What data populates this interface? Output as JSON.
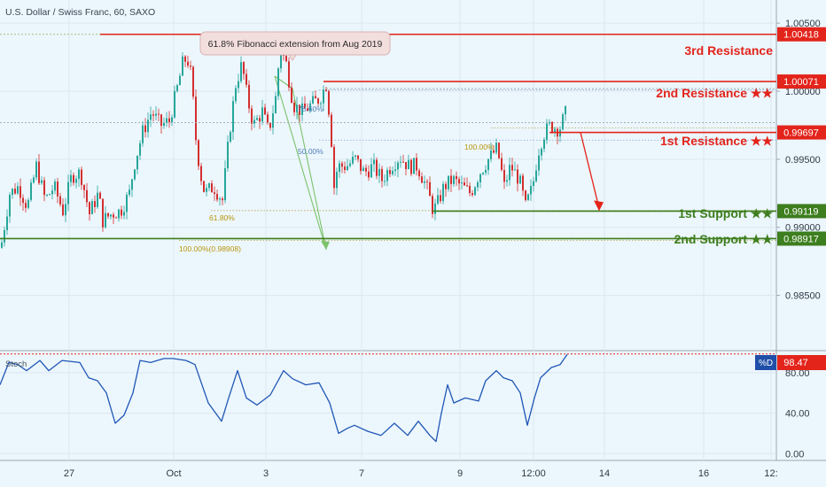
{
  "header": {
    "symbol_title": "U.S. Dollar / Swiss Franc, 60, SAXO"
  },
  "annotation": {
    "fib_extension_note": "61.8% Fibonacci extension from Aug 2019"
  },
  "colors": {
    "background": "#ecf6fd",
    "resistance": "#e3241b",
    "support": "#3d7e1e",
    "candle_up": "#26a69a",
    "candle_down": "#d32f2f",
    "stoch_line": "#1f57b5",
    "fib_text": "#b8960a",
    "fib_line": "#b8a84a",
    "arrow_green": "#7ac36a",
    "arrow_red": "#e3241b",
    "axis_border": "#9aa5ae"
  },
  "price_axis": {
    "ticks": [
      "1.00500",
      "1.00000",
      "0.99500",
      "0.99000",
      "0.98500"
    ],
    "ylim": [
      0.9812,
      1.0067
    ]
  },
  "time_axis": {
    "labels": [
      "27",
      "Oct",
      "3",
      "7",
      "9",
      "12:00",
      "14",
      "16",
      "12:"
    ]
  },
  "levels": [
    {
      "name": "3rd Resistance",
      "label": "3rd Resistance",
      "price": 1.00418,
      "price_label": "1.00418",
      "kind": "resistance"
    },
    {
      "name": "2nd Resistance",
      "label": "2nd Resistance ★★",
      "price": 1.00071,
      "price_label": "1.00071",
      "kind": "resistance"
    },
    {
      "name": "1st Resistance",
      "label": "1st Resistance ★★",
      "price": 0.99697,
      "price_label": "0.99697",
      "kind": "resistance"
    },
    {
      "name": "1st Support",
      "label": "1st Support ★★",
      "price": 0.99119,
      "price_label": "0.99119",
      "kind": "support"
    },
    {
      "name": "2nd Support",
      "label": "2nd Support ★★",
      "price": 0.98917,
      "price_label": "0.98917",
      "kind": "support"
    }
  ],
  "fib_labels": {
    "l786": "78.60%",
    "l50": "50.00%",
    "l100": "100.00%",
    "l618": "61.80%",
    "l100b": "100.00%(0.98908)"
  },
  "stoch": {
    "name": "Stoch",
    "value_tag": "%D",
    "value_label": "98.47",
    "ticks": [
      "80.00",
      "40.00",
      "0.00"
    ],
    "ylim": [
      -5,
      100
    ]
  },
  "chart_data": {
    "type": "candlestick",
    "title": "U.S. Dollar / Swiss Franc, 60, SAXO",
    "xlabel": "",
    "ylabel": "",
    "ylim": [
      0.9812,
      1.0067
    ],
    "close_path": [
      [
        0,
        0.9885
      ],
      [
        10,
        0.9925
      ],
      [
        20,
        0.993
      ],
      [
        30,
        0.9915
      ],
      [
        40,
        0.9945
      ],
      [
        50,
        0.992
      ],
      [
        60,
        0.993
      ],
      [
        70,
        0.9912
      ],
      [
        80,
        0.9938
      ],
      [
        90,
        0.994
      ],
      [
        100,
        0.991
      ],
      [
        110,
        0.9925
      ],
      [
        115,
        0.9905
      ],
      [
        125,
        0.991
      ],
      [
        135,
        0.9912
      ],
      [
        145,
        0.9925
      ],
      [
        150,
        0.9945
      ],
      [
        160,
        0.997
      ],
      [
        170,
        0.9985
      ],
      [
        180,
        0.9975
      ],
      [
        190,
        0.9978
      ],
      [
        200,
        1.0005
      ],
      [
        205,
        1.002
      ],
      [
        210,
        1.0025
      ],
      [
        215,
        1.001
      ],
      [
        220,
        0.9965
      ],
      [
        225,
        0.994
      ],
      [
        230,
        0.9925
      ],
      [
        240,
        0.993
      ],
      [
        250,
        0.992
      ],
      [
        258,
        0.997
      ],
      [
        265,
        1.0005
      ],
      [
        272,
        1.002
      ],
      [
        278,
        0.9995
      ],
      [
        285,
        0.9975
      ],
      [
        295,
        0.9985
      ],
      [
        302,
        0.997
      ],
      [
        310,
        0.9995
      ],
      [
        315,
        1.0032
      ],
      [
        322,
        1.002
      ],
      [
        330,
        0.999
      ],
      [
        340,
        0.9985
      ],
      [
        350,
        0.999
      ],
      [
        360,
        0.9995
      ],
      [
        367,
        1.0005
      ],
      [
        372,
        0.9975
      ],
      [
        376,
        0.993
      ],
      [
        380,
        0.9945
      ],
      [
        390,
        0.9945
      ],
      [
        400,
        0.995
      ],
      [
        410,
        0.994
      ],
      [
        420,
        0.9945
      ],
      [
        430,
        0.9935
      ],
      [
        440,
        0.9945
      ],
      [
        450,
        0.9952
      ],
      [
        460,
        0.9945
      ],
      [
        470,
        0.9945
      ],
      [
        480,
        0.993
      ],
      [
        488,
        0.9912
      ],
      [
        493,
        0.9918
      ],
      [
        500,
        0.993
      ],
      [
        510,
        0.9935
      ],
      [
        520,
        0.993
      ],
      [
        530,
        0.9925
      ],
      [
        540,
        0.994
      ],
      [
        550,
        0.995
      ],
      [
        560,
        0.9958
      ],
      [
        568,
        0.993
      ],
      [
        575,
        0.9945
      ],
      [
        585,
        0.9935
      ],
      [
        592,
        0.9915
      ],
      [
        600,
        0.993
      ],
      [
        606,
        0.9955
      ],
      [
        612,
        0.9968
      ],
      [
        620,
        0.9975
      ],
      [
        630,
        0.9972
      ],
      [
        638,
        0.9985
      ]
    ],
    "stoch_series": [
      [
        0,
        68
      ],
      [
        10,
        90
      ],
      [
        20,
        88
      ],
      [
        30,
        82
      ],
      [
        45,
        92
      ],
      [
        55,
        82
      ],
      [
        70,
        92
      ],
      [
        90,
        90
      ],
      [
        100,
        75
      ],
      [
        110,
        72
      ],
      [
        120,
        60
      ],
      [
        130,
        30
      ],
      [
        140,
        38
      ],
      [
        150,
        60
      ],
      [
        158,
        92
      ],
      [
        170,
        90
      ],
      [
        185,
        94
      ],
      [
        195,
        94
      ],
      [
        210,
        92
      ],
      [
        220,
        88
      ],
      [
        235,
        50
      ],
      [
        250,
        32
      ],
      [
        258,
        55
      ],
      [
        268,
        82
      ],
      [
        278,
        55
      ],
      [
        290,
        48
      ],
      [
        305,
        58
      ],
      [
        320,
        82
      ],
      [
        330,
        74
      ],
      [
        345,
        68
      ],
      [
        360,
        70
      ],
      [
        372,
        50
      ],
      [
        382,
        20
      ],
      [
        392,
        25
      ],
      [
        400,
        28
      ],
      [
        415,
        22
      ],
      [
        430,
        18
      ],
      [
        445,
        30
      ],
      [
        460,
        18
      ],
      [
        472,
        32
      ],
      [
        485,
        18
      ],
      [
        492,
        12
      ],
      [
        498,
        40
      ],
      [
        505,
        68
      ],
      [
        512,
        50
      ],
      [
        525,
        55
      ],
      [
        540,
        52
      ],
      [
        548,
        72
      ],
      [
        560,
        82
      ],
      [
        568,
        75
      ],
      [
        578,
        72
      ],
      [
        587,
        60
      ],
      [
        595,
        28
      ],
      [
        603,
        55
      ],
      [
        610,
        75
      ],
      [
        622,
        85
      ],
      [
        632,
        88
      ],
      [
        640,
        98
      ]
    ]
  }
}
